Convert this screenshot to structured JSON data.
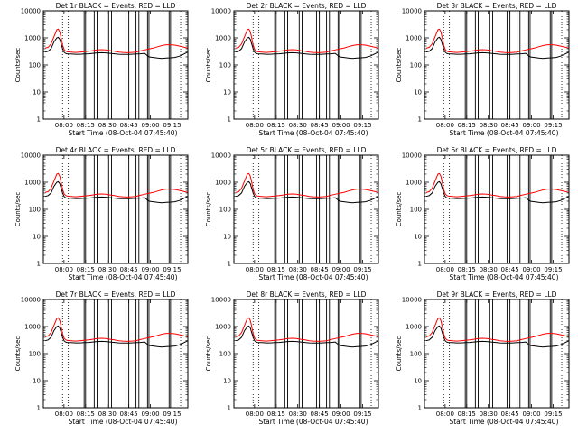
{
  "figure": {
    "background": "#ffffff",
    "axis_color": "#000000",
    "colors": {
      "events": "#000000",
      "lld": "#ff0000"
    }
  },
  "chart_data": [
    {
      "type": "line",
      "title": "Det 1r  BLACK = Events, RED = LLD",
      "xlabel": "Start Time (08-Oct-04 07:45:40)",
      "ylabel": "Counts/sec",
      "yscale": "log",
      "ylim": [
        1,
        10000
      ],
      "xlim": [
        "07:45:40",
        "09:26"
      ],
      "xticks": [
        "08:00",
        "08:15",
        "08:30",
        "08:45",
        "09:00",
        "09:15"
      ],
      "yticks": [
        "1",
        "10",
        "100",
        "1000",
        "10000"
      ],
      "series": [
        {
          "name": "Events",
          "color": "#000000"
        },
        {
          "name": "LLD",
          "color": "#ff0000"
        }
      ]
    },
    {
      "type": "line",
      "title": "Det 2r  BLACK = Events, RED = LLD",
      "xlabel": "Start Time (08-Oct-04 07:45:40)",
      "ylabel": "Counts/sec",
      "yscale": "log",
      "ylim": [
        1,
        10000
      ],
      "xlim": [
        "07:45:40",
        "09:26"
      ],
      "xticks": [
        "08:00",
        "08:15",
        "08:30",
        "08:45",
        "09:00",
        "09:15"
      ],
      "yticks": [
        "1",
        "10",
        "100",
        "1000",
        "10000"
      ],
      "series": [
        {
          "name": "Events",
          "color": "#000000"
        },
        {
          "name": "LLD",
          "color": "#ff0000"
        }
      ]
    },
    {
      "type": "line",
      "title": "Det 3r  BLACK = Events, RED = LLD",
      "xlabel": "Start Time (08-Oct-04 07:45:40)",
      "ylabel": "Counts/sec",
      "yscale": "log",
      "ylim": [
        1,
        10000
      ],
      "xlim": [
        "07:45:40",
        "09:26"
      ],
      "xticks": [
        "08:00",
        "08:15",
        "08:30",
        "08:45",
        "09:00",
        "09:15"
      ],
      "yticks": [
        "1",
        "10",
        "100",
        "1000",
        "10000"
      ],
      "series": [
        {
          "name": "Events",
          "color": "#000000"
        },
        {
          "name": "LLD",
          "color": "#ff0000"
        }
      ]
    },
    {
      "type": "line",
      "title": "Det 4r  BLACK = Events, RED = LLD",
      "xlabel": "Start Time (08-Oct-04 07:45:40)",
      "ylabel": "Counts/sec",
      "yscale": "log",
      "ylim": [
        1,
        10000
      ],
      "xlim": [
        "07:45:40",
        "09:26"
      ],
      "xticks": [
        "08:00",
        "08:15",
        "08:30",
        "08:45",
        "09:00",
        "09:15"
      ],
      "yticks": [
        "1",
        "10",
        "100",
        "1000",
        "10000"
      ],
      "series": [
        {
          "name": "Events",
          "color": "#000000"
        },
        {
          "name": "LLD",
          "color": "#ff0000"
        }
      ]
    },
    {
      "type": "line",
      "title": "Det 5r  BLACK = Events, RED = LLD",
      "xlabel": "Start Time (08-Oct-04 07:45:40)",
      "ylabel": "Counts/sec",
      "yscale": "log",
      "ylim": [
        1,
        10000
      ],
      "xlim": [
        "07:45:40",
        "09:26"
      ],
      "xticks": [
        "08:00",
        "08:15",
        "08:30",
        "08:45",
        "09:00",
        "09:15"
      ],
      "yticks": [
        "1",
        "10",
        "100",
        "1000",
        "10000"
      ],
      "series": [
        {
          "name": "Events",
          "color": "#000000"
        },
        {
          "name": "LLD",
          "color": "#ff0000"
        }
      ]
    },
    {
      "type": "line",
      "title": "Det 6r  BLACK = Events, RED = LLD",
      "xlabel": "Start Time (08-Oct-04 07:45:40)",
      "ylabel": "Counts/sec",
      "yscale": "log",
      "ylim": [
        1,
        10000
      ],
      "xlim": [
        "07:45:40",
        "09:26"
      ],
      "xticks": [
        "08:00",
        "08:15",
        "08:30",
        "08:45",
        "09:00",
        "09:15"
      ],
      "yticks": [
        "1",
        "10",
        "100",
        "1000",
        "10000"
      ],
      "series": [
        {
          "name": "Events",
          "color": "#000000"
        },
        {
          "name": "LLD",
          "color": "#ff0000"
        }
      ]
    },
    {
      "type": "line",
      "title": "Det 7r  BLACK = Events, RED = LLD",
      "xlabel": "Start Time (08-Oct-04 07:45:40)",
      "ylabel": "Counts/sec",
      "yscale": "log",
      "ylim": [
        1,
        10000
      ],
      "xlim": [
        "07:45:40",
        "09:26"
      ],
      "xticks": [
        "08:00",
        "08:15",
        "08:30",
        "08:45",
        "09:00",
        "09:15"
      ],
      "yticks": [
        "1",
        "10",
        "100",
        "1000",
        "10000"
      ],
      "series": [
        {
          "name": "Events",
          "color": "#000000"
        },
        {
          "name": "LLD",
          "color": "#ff0000"
        }
      ]
    },
    {
      "type": "line",
      "title": "Det 8r  BLACK = Events, RED = LLD",
      "xlabel": "Start Time (08-Oct-04 07:45:40)",
      "ylabel": "Counts/sec",
      "yscale": "log",
      "ylim": [
        1,
        10000
      ],
      "xlim": [
        "07:45:40",
        "09:26"
      ],
      "xticks": [
        "08:00",
        "08:15",
        "08:30",
        "08:45",
        "09:00",
        "09:15"
      ],
      "yticks": [
        "1",
        "10",
        "100",
        "1000",
        "10000"
      ],
      "series": [
        {
          "name": "Events",
          "color": "#000000"
        },
        {
          "name": "LLD",
          "color": "#ff0000"
        }
      ]
    },
    {
      "type": "line",
      "title": "Det 9r  BLACK = Events, RED = LLD",
      "xlabel": "Start Time (08-Oct-04 07:45:40)",
      "ylabel": "Counts/sec",
      "yscale": "log",
      "ylim": [
        1,
        10000
      ],
      "xlim": [
        "07:45:40",
        "09:26"
      ],
      "xticks": [
        "08:00",
        "08:15",
        "08:30",
        "08:45",
        "09:00",
        "09:15"
      ],
      "yticks": [
        "1",
        "10",
        "100",
        "1000",
        "10000"
      ],
      "series": [
        {
          "name": "Events",
          "color": "#000000"
        },
        {
          "name": "LLD",
          "color": "#ff0000"
        }
      ]
    }
  ],
  "shared_series": {
    "times": [
      "07:47",
      "07:49",
      "07:51",
      "07:53",
      "07:55",
      "07:56",
      "07:57",
      "07:58",
      "07:59",
      "08:00",
      "08:01",
      "08:02",
      "08:05",
      "08:08",
      "08:11",
      "08:14",
      "08:17",
      "08:20",
      "08:23",
      "08:26",
      "08:29",
      "08:32",
      "08:35",
      "08:38",
      "08:41",
      "08:44",
      "08:47",
      "08:50",
      "08:53",
      "08:56",
      "08:59",
      "09:02",
      "09:05",
      "09:08",
      "09:11",
      "09:14",
      "09:17",
      "09:20",
      "09:23",
      "09:26"
    ],
    "lld": [
      420,
      450,
      600,
      1100,
      2000,
      2100,
      1700,
      1000,
      550,
      380,
      330,
      310,
      300,
      290,
      300,
      310,
      320,
      340,
      360,
      370,
      360,
      340,
      320,
      300,
      290,
      285,
      290,
      300,
      330,
      360,
      390,
      420,
      470,
      520,
      560,
      560,
      540,
      500,
      460,
      420
    ],
    "events": [
      300,
      320,
      400,
      700,
      1000,
      1050,
      900,
      600,
      400,
      300,
      270,
      260,
      255,
      250,
      250,
      255,
      260,
      270,
      280,
      285,
      280,
      270,
      260,
      250,
      245,
      245,
      250,
      255,
      260,
      270,
      200,
      190,
      180,
      175,
      180,
      185,
      190,
      210,
      250,
      300
    ],
    "dropouts": [
      {
        "start": "08:14",
        "end": "08:15",
        "level": 1
      },
      {
        "start": "08:21",
        "end": "08:23",
        "level": 1
      },
      {
        "start": "08:31",
        "end": "08:33",
        "level": 1
      },
      {
        "start": "08:43",
        "end": "08:45",
        "level": 1
      },
      {
        "start": "08:50",
        "end": "08:52",
        "level": 1
      },
      {
        "start": "08:58",
        "end": "08:59",
        "level": 1
      },
      {
        "start": "09:13",
        "end": "09:14",
        "level": 1
      }
    ],
    "vertical_markers": [
      {
        "time": "07:59",
        "style": "dotted"
      },
      {
        "time": "08:03",
        "style": "dotted"
      },
      {
        "time": "09:21",
        "style": "dotted"
      }
    ]
  }
}
